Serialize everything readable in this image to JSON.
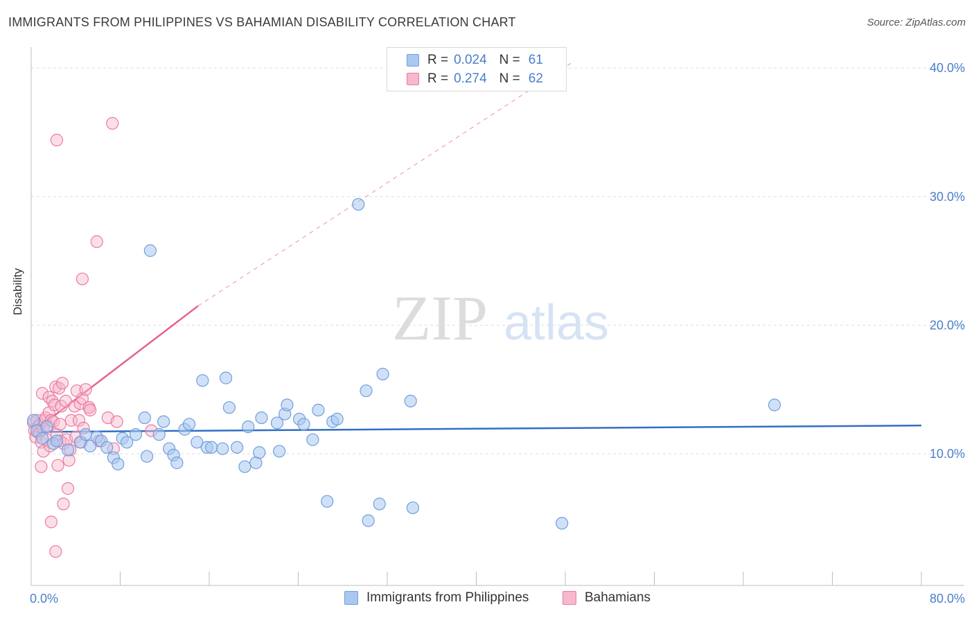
{
  "title": "IMMIGRANTS FROM PHILIPPINES VS BAHAMIAN DISABILITY CORRELATION CHART",
  "source": "Source: ZipAtlas.com",
  "watermark": {
    "zip": "ZIP",
    "atlas": "atlas"
  },
  "colors": {
    "blue_fill": "#a9c8f0",
    "blue_stroke": "#6f9fde",
    "blue_line": "#2f6fc4",
    "pink_fill": "#f7b8cc",
    "pink_stroke": "#ec7aa0",
    "pink_line": "#e6618d",
    "axis_text": "#4a7fc9"
  },
  "legend": {
    "rows": [
      {
        "r_label": "R =",
        "r_value": "0.024",
        "n_label": "N =",
        "n_value": "61"
      },
      {
        "r_label": "R =",
        "r_value": "0.274",
        "n_label": "N =",
        "n_value": "62"
      }
    ]
  },
  "bottom_legend": [
    "Immigrants from Philippines",
    "Bahamians"
  ],
  "chart_data": {
    "type": "scatter",
    "title": "IMMIGRANTS FROM PHILIPPINES VS BAHAMIAN DISABILITY CORRELATION CHART",
    "xlabel": "",
    "ylabel": "Disability",
    "xlim": [
      0,
      80
    ],
    "ylim": [
      0,
      40
    ],
    "x_tick_labels": [
      "0.0%",
      "80.0%"
    ],
    "y_tick_labels": [
      "10.0%",
      "20.0%",
      "30.0%",
      "40.0%"
    ],
    "y_ticks": [
      10,
      20,
      30,
      40
    ],
    "grid": true,
    "legend_position": "top-center",
    "series": [
      {
        "name": "Immigrants from Philippines",
        "trend": {
          "x": [
            0,
            80
          ],
          "y": [
            11.7,
            12.2
          ],
          "style": "solid"
        },
        "points": [
          [
            0.2,
            12.6
          ],
          [
            0.5,
            11.8
          ],
          [
            1.0,
            11.2
          ],
          [
            1.4,
            12.1
          ],
          [
            2.0,
            10.8
          ],
          [
            2.3,
            11.0
          ],
          [
            3.3,
            10.3
          ],
          [
            4.4,
            10.9
          ],
          [
            4.9,
            11.5
          ],
          [
            5.3,
            10.6
          ],
          [
            5.9,
            11.3
          ],
          [
            6.3,
            11.0
          ],
          [
            6.8,
            10.5
          ],
          [
            7.4,
            9.7
          ],
          [
            7.8,
            9.2
          ],
          [
            8.2,
            11.2
          ],
          [
            8.6,
            10.9
          ],
          [
            9.4,
            11.5
          ],
          [
            10.2,
            12.8
          ],
          [
            10.4,
            9.8
          ],
          [
            10.7,
            25.8
          ],
          [
            11.5,
            11.5
          ],
          [
            11.9,
            12.5
          ],
          [
            12.4,
            10.4
          ],
          [
            12.8,
            9.9
          ],
          [
            13.1,
            9.3
          ],
          [
            13.8,
            11.9
          ],
          [
            14.2,
            12.3
          ],
          [
            14.9,
            10.9
          ],
          [
            15.4,
            15.7
          ],
          [
            15.8,
            10.5
          ],
          [
            16.2,
            10.5
          ],
          [
            17.2,
            10.4
          ],
          [
            17.5,
            15.9
          ],
          [
            17.8,
            13.6
          ],
          [
            18.5,
            10.5
          ],
          [
            19.2,
            9.0
          ],
          [
            19.5,
            12.1
          ],
          [
            20.2,
            9.3
          ],
          [
            20.5,
            10.1
          ],
          [
            20.7,
            12.8
          ],
          [
            22.1,
            12.4
          ],
          [
            22.3,
            10.2
          ],
          [
            22.8,
            13.1
          ],
          [
            23.0,
            13.8
          ],
          [
            24.1,
            12.7
          ],
          [
            24.5,
            12.3
          ],
          [
            25.3,
            11.1
          ],
          [
            25.8,
            13.4
          ],
          [
            26.6,
            6.3
          ],
          [
            27.1,
            12.5
          ],
          [
            27.5,
            12.7
          ],
          [
            29.4,
            29.4
          ],
          [
            30.1,
            14.9
          ],
          [
            30.3,
            4.8
          ],
          [
            31.3,
            6.1
          ],
          [
            31.6,
            16.2
          ],
          [
            34.1,
            14.1
          ],
          [
            34.3,
            5.8
          ],
          [
            47.7,
            4.6
          ],
          [
            66.8,
            13.8
          ]
        ]
      },
      {
        "name": "Bahamians",
        "trend": {
          "x": [
            0,
            15.0,
            80
          ],
          "y": [
            11.6,
            21.5,
            58.1
          ],
          "style": "solid-then-dashed"
        },
        "points": [
          [
            0.2,
            12.4
          ],
          [
            0.3,
            11.8
          ],
          [
            0.4,
            11.3
          ],
          [
            0.5,
            12.6
          ],
          [
            0.6,
            12.1
          ],
          [
            0.7,
            11.6
          ],
          [
            0.8,
            12.3
          ],
          [
            0.9,
            10.9
          ],
          [
            0.9,
            9.0
          ],
          [
            1.0,
            14.7
          ],
          [
            1.1,
            11.9
          ],
          [
            1.1,
            10.2
          ],
          [
            1.2,
            12.6
          ],
          [
            1.3,
            12.8
          ],
          [
            1.4,
            11.1
          ],
          [
            1.5,
            12.2
          ],
          [
            1.6,
            13.2
          ],
          [
            1.6,
            14.4
          ],
          [
            1.7,
            10.6
          ],
          [
            1.8,
            12.6
          ],
          [
            1.8,
            4.7
          ],
          [
            1.9,
            14.1
          ],
          [
            2.0,
            12.5
          ],
          [
            2.1,
            13.8
          ],
          [
            2.2,
            2.4
          ],
          [
            2.2,
            15.2
          ],
          [
            2.3,
            11.5
          ],
          [
            2.3,
            34.4
          ],
          [
            2.4,
            9.1
          ],
          [
            2.5,
            15.1
          ],
          [
            2.6,
            11.0
          ],
          [
            2.6,
            12.3
          ],
          [
            2.7,
            13.7
          ],
          [
            2.8,
            15.5
          ],
          [
            2.9,
            10.8
          ],
          [
            2.9,
            6.1
          ],
          [
            3.1,
            14.1
          ],
          [
            3.2,
            11.1
          ],
          [
            3.3,
            7.3
          ],
          [
            3.4,
            9.5
          ],
          [
            3.5,
            10.3
          ],
          [
            3.6,
            12.6
          ],
          [
            3.9,
            13.7
          ],
          [
            4.0,
            11.3
          ],
          [
            4.1,
            14.9
          ],
          [
            4.3,
            12.6
          ],
          [
            4.4,
            13.9
          ],
          [
            4.5,
            10.9
          ],
          [
            4.6,
            23.6
          ],
          [
            4.6,
            14.3
          ],
          [
            4.7,
            12.0
          ],
          [
            4.9,
            15.0
          ],
          [
            5.2,
            13.6
          ],
          [
            5.2,
            13.6
          ],
          [
            5.3,
            13.4
          ],
          [
            5.9,
            26.5
          ],
          [
            6.1,
            11.0
          ],
          [
            6.9,
            12.8
          ],
          [
            7.3,
            35.7
          ],
          [
            7.4,
            10.4
          ],
          [
            7.7,
            12.5
          ],
          [
            10.8,
            11.8
          ]
        ]
      }
    ]
  }
}
